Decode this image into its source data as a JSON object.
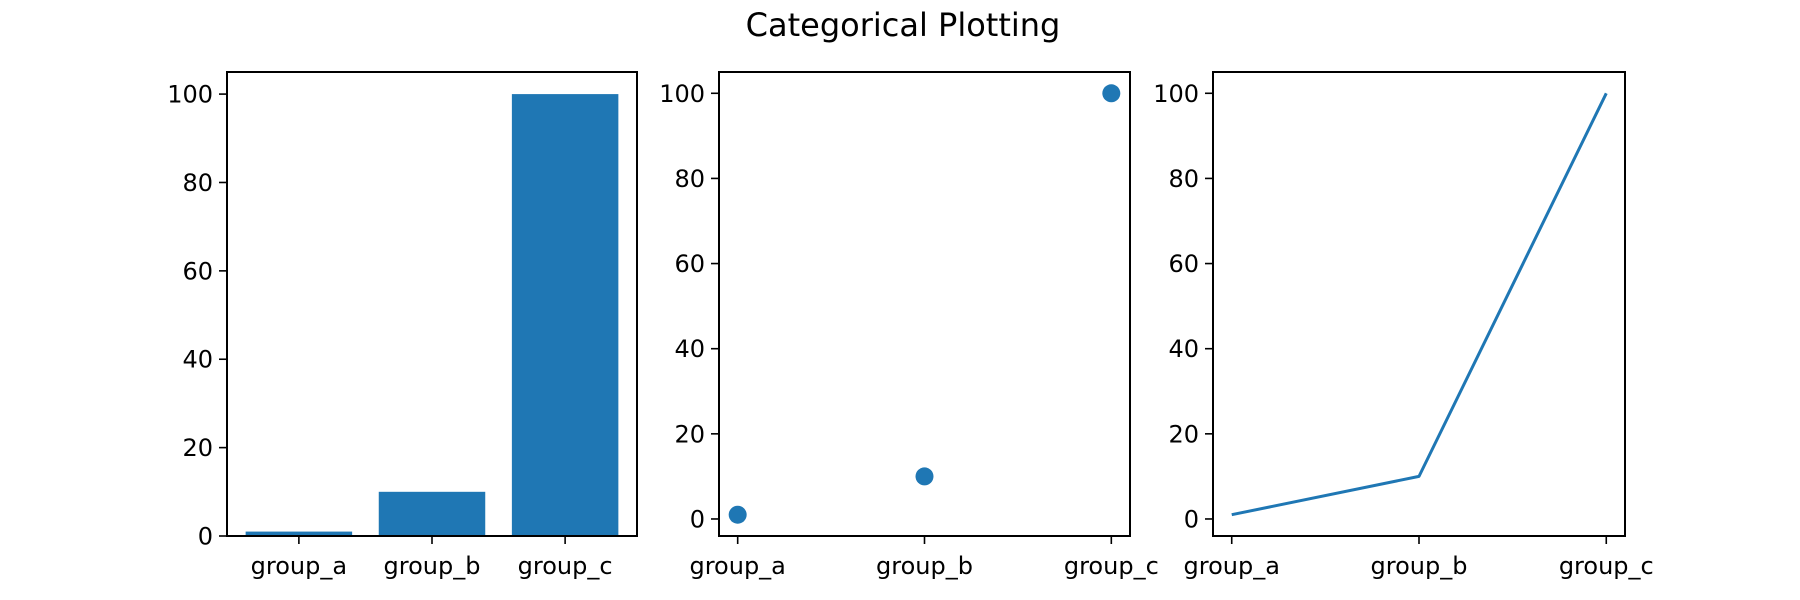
{
  "figure": {
    "title": "Categorical Plotting"
  },
  "colors": {
    "series": "#1f77b4",
    "axes": "#000000",
    "background": "#ffffff"
  },
  "chart_data": [
    {
      "type": "bar",
      "categories": [
        "group_a",
        "group_b",
        "group_c"
      ],
      "values": [
        1,
        10,
        100
      ],
      "ylim": [
        0,
        105
      ],
      "yticks": [
        0,
        20,
        40,
        60,
        80,
        100
      ],
      "grid": false
    },
    {
      "type": "scatter",
      "categories": [
        "group_a",
        "group_b",
        "group_c"
      ],
      "values": [
        1,
        10,
        100
      ],
      "ylim": [
        -4,
        105
      ],
      "yticks": [
        0,
        20,
        40,
        60,
        80,
        100
      ],
      "grid": false
    },
    {
      "type": "line",
      "categories": [
        "group_a",
        "group_b",
        "group_c"
      ],
      "values": [
        1,
        10,
        100
      ],
      "ylim": [
        -4,
        105
      ],
      "yticks": [
        0,
        20,
        40,
        60,
        80,
        100
      ],
      "grid": false
    }
  ]
}
